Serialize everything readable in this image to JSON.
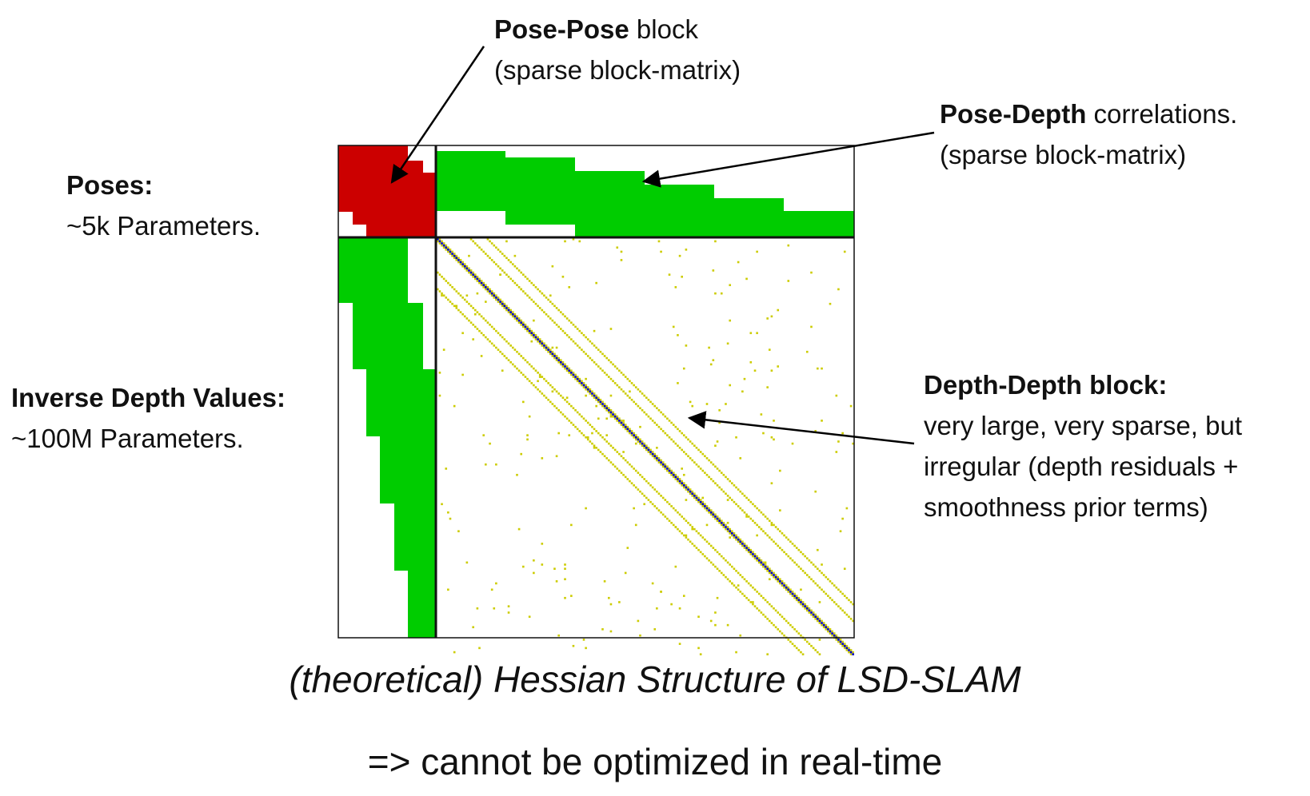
{
  "colors": {
    "pose_pose": "#cc0000",
    "pose_depth": "#00cc00",
    "depth_offdiag": "#cccc00",
    "depth_diag": "#0000cc",
    "border": "#111111"
  },
  "labels": {
    "pose_pose": {
      "bold": "Pose-Pose",
      "rest": " block",
      "line2": "(sparse block-matrix)"
    },
    "pose_depth": {
      "bold": "Pose-Depth",
      "rest": " correlations.",
      "line2": "(sparse block-matrix)"
    },
    "poses": {
      "line1": "Poses:",
      "line2": "~5k Parameters."
    },
    "inverse_depth": {
      "line1": "Inverse Depth Values:",
      "line2": "~100M Parameters."
    },
    "depth_depth": {
      "line1": "Depth-Depth block:",
      "line2": "very large, very sparse, but",
      "line3": "irregular (depth residuals +",
      "line4": "smoothness prior terms)"
    }
  },
  "caption": {
    "title": "(theoretical) Hessian Structure of LSD-SLAM",
    "subtitle": "=> cannot be optimized in real-time"
  }
}
